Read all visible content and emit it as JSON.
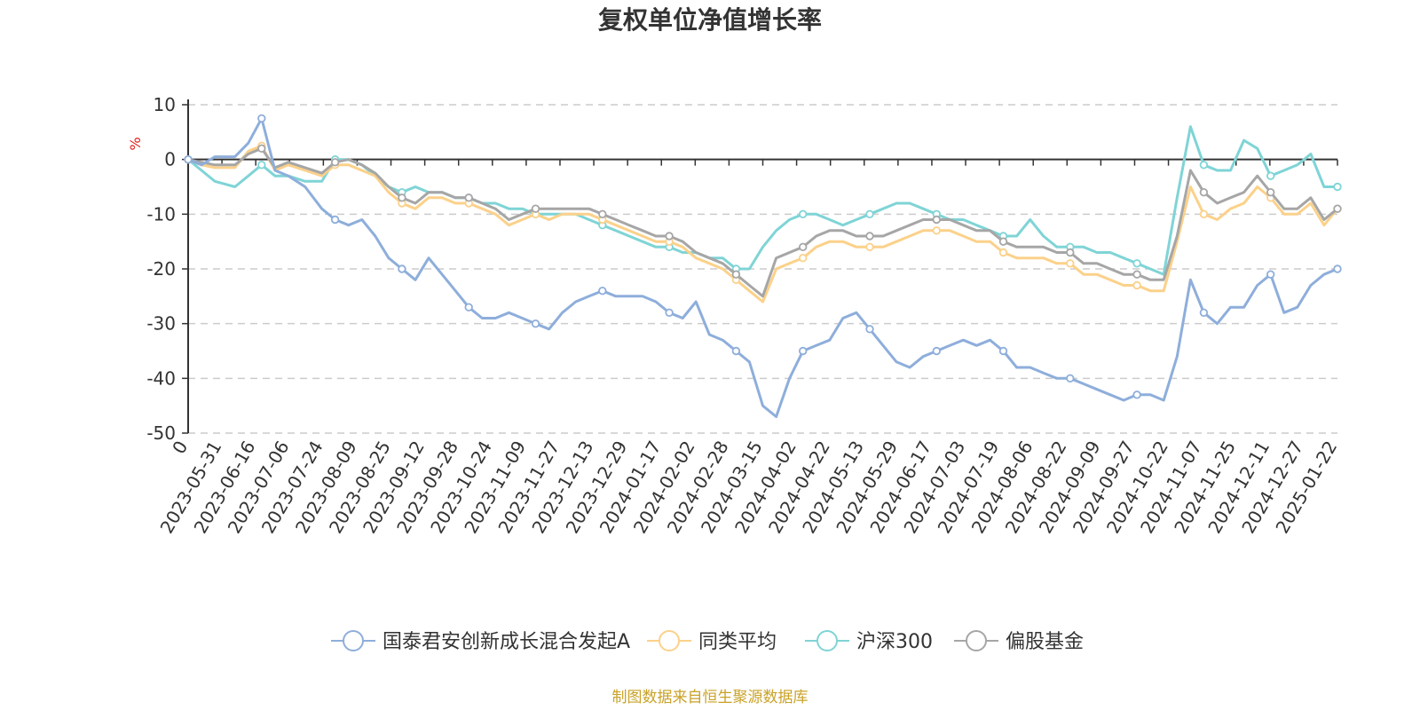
{
  "chart_data": {
    "type": "line",
    "title": "复权单位净值增长率",
    "ylabel": "%",
    "ylim": [
      -50,
      10
    ],
    "yticks": [
      10,
      0,
      -10,
      -20,
      -30,
      -40,
      -50
    ],
    "x_tick_labels": [
      "0",
      "2023-05-31",
      "2023-06-16",
      "2023-07-06",
      "2023-07-24",
      "2023-08-09",
      "2023-08-25",
      "2023-09-12",
      "2023-09-28",
      "2023-10-24",
      "2023-11-09",
      "2023-11-27",
      "2023-12-13",
      "2023-12-29",
      "2024-01-17",
      "2024-02-02",
      "2024-02-28",
      "2024-03-15",
      "2024-04-02",
      "2024-04-22",
      "2024-05-13",
      "2024-05-29",
      "2024-06-17",
      "2024-07-03",
      "2024-07-19",
      "2024-08-06",
      "2024-08-22",
      "2024-09-09",
      "2024-09-27",
      "2024-10-22",
      "2024-11-07",
      "2024-11-25",
      "2024-12-11",
      "2024-12-27",
      "2025-01-22"
    ],
    "x_index": [
      0,
      4,
      8,
      14,
      18,
      22,
      26,
      30,
      35,
      40,
      44,
      48,
      52,
      56,
      60,
      64,
      68,
      72,
      76,
      80,
      84,
      88,
      92,
      96,
      100,
      104,
      108,
      112,
      116,
      120,
      124,
      128,
      132,
      136,
      140,
      144,
      148,
      152,
      156,
      160,
      164,
      168,
      172,
      176,
      180,
      184,
      188,
      192,
      196,
      200,
      204,
      208,
      212,
      216,
      220,
      224,
      228,
      232,
      236,
      240,
      244,
      248,
      252,
      256,
      260,
      264,
      268,
      272,
      276,
      280,
      284,
      288,
      292,
      296,
      300,
      304,
      308,
      312,
      316,
      320,
      324,
      328,
      332,
      336,
      340,
      344
    ],
    "series": [
      {
        "name": "国泰君安创新成长混合发起A",
        "color": "#8eaedb",
        "values": [
          0,
          -1,
          0.5,
          0.5,
          3,
          7.5,
          -2,
          -3,
          -5,
          -9,
          -11,
          -12,
          -11,
          -14,
          -18,
          -20,
          -22,
          -18,
          -21,
          -24,
          -27,
          -29,
          -29,
          -28,
          -29,
          -30,
          -31,
          -28,
          -26,
          -25,
          -24,
          -25,
          -25,
          -25,
          -26,
          -28,
          -29,
          -26,
          -32,
          -33,
          -35,
          -37,
          -45,
          -47,
          -40,
          -35,
          -34,
          -33,
          -29,
          -28,
          -31,
          -34,
          -37,
          -38,
          -36,
          -35,
          -34,
          -33,
          -34,
          -33,
          -35,
          -38,
          -38,
          -39,
          -40,
          -40,
          -41,
          -42,
          -43,
          -44,
          -43,
          -43,
          -44,
          -36,
          -22,
          -28,
          -30,
          -27,
          -27,
          -23,
          -21,
          -28,
          -27,
          -23,
          -21,
          -20
        ]
      },
      {
        "name": "同类平均",
        "color": "#fbd18a",
        "values": [
          0,
          -1,
          -1.5,
          -1.5,
          1.5,
          2.5,
          -2,
          -1,
          -2,
          -3,
          -1,
          -1,
          -2,
          -3,
          -6,
          -8,
          -9,
          -7,
          -7,
          -8,
          -8,
          -9,
          -10,
          -12,
          -11,
          -10,
          -11,
          -10,
          -10,
          -10,
          -11,
          -12,
          -13,
          -14,
          -15,
          -15,
          -16,
          -18,
          -19,
          -20,
          -22,
          -24,
          -26,
          -20,
          -19,
          -18,
          -16,
          -15,
          -15,
          -16,
          -16,
          -16,
          -15,
          -14,
          -13,
          -13,
          -13,
          -14,
          -15,
          -15,
          -17,
          -18,
          -18,
          -18,
          -19,
          -19,
          -21,
          -21,
          -22,
          -23,
          -23,
          -24,
          -24,
          -15,
          -5,
          -10,
          -11,
          -9,
          -8,
          -5,
          -7,
          -10,
          -10,
          -8,
          -12,
          -9
        ]
      },
      {
        "name": "沪深300",
        "color": "#7fd4d6",
        "values": [
          0,
          -2,
          -4,
          -5,
          -3,
          -1,
          -3,
          -3,
          -4,
          -4,
          0,
          0,
          -1,
          -3,
          -5,
          -6,
          -5,
          -6,
          -6,
          -7,
          -7,
          -8,
          -8,
          -9,
          -9,
          -10,
          -10,
          -10,
          -10,
          -11,
          -12,
          -13,
          -14,
          -15,
          -16,
          -16,
          -17,
          -17,
          -18,
          -18,
          -20,
          -20,
          -16,
          -13,
          -11,
          -10,
          -10,
          -11,
          -12,
          -11,
          -10,
          -9,
          -8,
          -8,
          -9,
          -10,
          -11,
          -11,
          -12,
          -13,
          -14,
          -14,
          -11,
          -14,
          -16,
          -16,
          -16,
          -17,
          -17,
          -18,
          -19,
          -20,
          -21,
          -7,
          6,
          -1,
          -2,
          -2,
          3.5,
          2,
          -3,
          -2,
          -1,
          1,
          -5,
          -5
        ]
      },
      {
        "name": "偏股基金",
        "color": "#a6a6a6",
        "values": [
          0,
          -0.5,
          -1,
          -1,
          1,
          2,
          -1.5,
          -0.5,
          -1.5,
          -2.5,
          -0.5,
          0,
          -1,
          -2.5,
          -5,
          -7,
          -8,
          -6,
          -6,
          -7,
          -7,
          -8,
          -9,
          -11,
          -10,
          -9,
          -9,
          -9,
          -9,
          -9,
          -10,
          -11,
          -12,
          -13,
          -14,
          -14,
          -15,
          -17,
          -18,
          -19,
          -21,
          -23,
          -25,
          -18,
          -17,
          -16,
          -14,
          -13,
          -13,
          -14,
          -14,
          -14,
          -13,
          -12,
          -11,
          -11,
          -11,
          -12,
          -13,
          -13,
          -15,
          -16,
          -16,
          -16,
          -17,
          -17,
          -19,
          -19,
          -20,
          -21,
          -21,
          -22,
          -22,
          -14,
          -2,
          -6,
          -8,
          -7,
          -6,
          -3,
          -6,
          -9,
          -9,
          -7,
          -11,
          -9
        ]
      }
    ],
    "markers_every": 5,
    "grid": true,
    "legend_position": "bottom-center"
  },
  "source_note": "制图数据来自恒生聚源数据库"
}
